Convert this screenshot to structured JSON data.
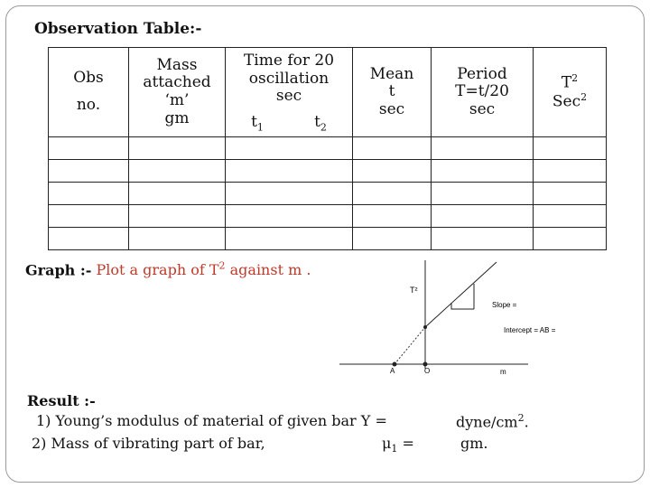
{
  "title": "Observation Table:-",
  "table": {
    "obs_l1": "Obs",
    "obs_l2": "no.",
    "mass_l1": "Mass",
    "mass_l2": "attached",
    "mass_l3": "‘m’",
    "mass_l4": "gm",
    "time_l1": "Time for 20",
    "time_l2": "oscillation",
    "time_l3": "sec",
    "t1": "t",
    "t1_sub": "1",
    "t2": "t",
    "t2_sub": "2",
    "mean_l1": "Mean",
    "mean_l2": "t",
    "mean_l3": "sec",
    "period_l1": "Period",
    "period_l2": "T=t/20",
    "period_l3": "sec",
    "t2col_l1": "T",
    "t2col_sup": "2",
    "t2col_l2": "Sec",
    "t2col_sup2": "2"
  },
  "graph": {
    "label": "Graph :-",
    "text_pre": "Plot a graph of T",
    "text_sup": "2",
    "text_post": " against m .",
    "y_axis_label": "T²",
    "slope_label": "Slope =",
    "intercept_label": "Intercept = AB =",
    "point_a": "A",
    "point_o": "O",
    "x_axis_label": "m"
  },
  "result": {
    "heading": "Result :-",
    "line1_text": "1) Young’s modulus of material of given bar  Y =",
    "line1_unit": "dyne/cm",
    "line1_unit_sup": "2",
    "line1_unit_end": ".",
    "line2_text": "2) Mass of vibrating part of bar,",
    "line2_symbol": "μ",
    "line2_symbol_sub": "1",
    "line2_eq": " =",
    "line2_unit": "gm."
  }
}
